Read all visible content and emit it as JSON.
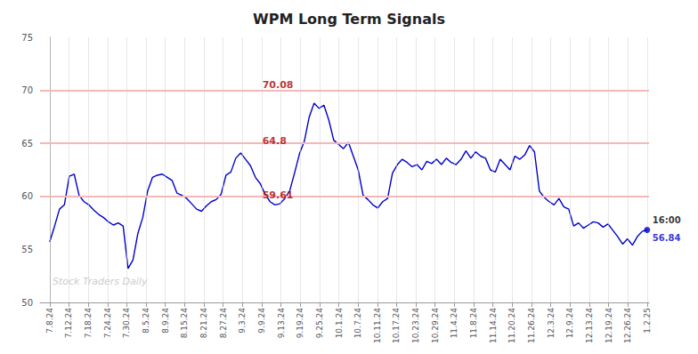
{
  "chart_data": {
    "type": "line",
    "title": "WPM Long Term Signals",
    "x": [
      0,
      0.2541,
      0.5082,
      0.7623,
      1.0164,
      1.2705,
      1.5246,
      1.7787,
      2.0328,
      2.2869,
      2.541,
      2.7951,
      3.0492,
      3.3033,
      3.5574,
      3.8115,
      4.0656,
      4.3197,
      4.5738,
      4.8279,
      5.082,
      5.3361,
      5.5902,
      5.8443,
      6.0984,
      6.3525,
      6.6066,
      6.8607,
      7.1148,
      7.3689,
      7.623,
      7.877,
      8.1311,
      8.3852,
      8.6393,
      8.8934,
      9.1475,
      9.4016,
      9.6557,
      9.9098,
      10.1639,
      10.418,
      10.6721,
      10.9262,
      11.1803,
      11.4344,
      11.6885,
      11.9426,
      12.1967,
      12.4508,
      12.7049,
      12.959,
      13.2131,
      13.4672,
      13.7213,
      13.9754,
      14.2295,
      14.4836,
      14.7377,
      14.9918,
      15.2459,
      15.5,
      15.7541,
      16.0082,
      16.2623,
      16.5164,
      16.7705,
      17.0246,
      17.2787,
      17.5328,
      17.7869,
      18.041,
      18.2951,
      18.5492,
      18.8033,
      19.0574,
      19.3115,
      19.5656,
      19.8197,
      20.0738,
      20.3279,
      20.582,
      20.8361,
      21.0902,
      21.3443,
      21.5984,
      21.8525,
      22.1066,
      22.3607,
      22.6148,
      22.8689,
      23.123,
      23.377,
      23.6311,
      23.8852,
      24.1393,
      24.3934,
      24.6475,
      24.9016,
      25.1557,
      25.4098,
      25.6639,
      25.918,
      26.1721,
      26.4262,
      26.6803,
      26.9344,
      27.1885,
      27.4426,
      27.6967,
      27.9508,
      28.2049,
      28.459,
      28.7131,
      28.9672,
      29.2213,
      29.4754,
      29.7295,
      29.9836,
      30.2377,
      30.4918,
      30.7459,
      31
    ],
    "values": [
      55.7,
      57.2,
      58.8,
      59.2,
      61.9,
      62.1,
      60.1,
      59.5,
      59.2,
      58.7,
      58.3,
      58.0,
      57.6,
      57.3,
      57.5,
      57.2,
      53.2,
      54.0,
      56.5,
      58.0,
      60.5,
      61.8,
      62.0,
      62.1,
      61.8,
      61.5,
      60.3,
      60.1,
      59.8,
      59.3,
      58.8,
      58.6,
      59.1,
      59.5,
      59.7,
      60.2,
      62.0,
      62.3,
      63.6,
      64.1,
      63.5,
      62.9,
      61.8,
      61.2,
      60.2,
      59.5,
      59.2,
      59.3,
      59.8,
      60.5,
      62.2,
      64.0,
      65.2,
      67.5,
      68.8,
      68.3,
      68.6,
      67.2,
      65.3,
      64.9,
      64.5,
      65.1,
      63.8,
      62.5,
      60.1,
      59.7,
      59.2,
      58.9,
      59.5,
      59.8,
      62.2,
      63.0,
      63.5,
      63.2,
      62.8,
      63.0,
      62.5,
      63.3,
      63.1,
      63.5,
      63.0,
      63.6,
      63.2,
      63.0,
      63.5,
      64.3,
      63.6,
      64.2,
      63.8,
      63.6,
      62.5,
      62.3,
      63.5,
      63.0,
      62.5,
      63.8,
      63.5,
      63.9,
      64.8,
      64.2,
      60.5,
      59.9,
      59.5,
      59.2,
      59.8,
      59.0,
      58.8,
      57.2,
      57.5,
      57.0,
      57.3,
      57.6,
      57.5,
      57.1,
      57.4,
      56.8,
      56.2,
      55.5,
      56.0,
      55.4,
      56.2,
      56.7,
      56.84
    ],
    "color": "#0000cc",
    "marker": "last",
    "xlim": [
      -0.5,
      31.1
    ],
    "xticks": [
      {
        "value": 0,
        "label": "7.8.24"
      },
      {
        "value": 1,
        "label": "7.12.24"
      },
      {
        "value": 2,
        "label": "7.18.24"
      },
      {
        "value": 3,
        "label": "7.24.24"
      },
      {
        "value": 4,
        "label": "7.30.24"
      },
      {
        "value": 5,
        "label": "8.5.24"
      },
      {
        "value": 6,
        "label": "8.9.24"
      },
      {
        "value": 7,
        "label": "8.15.24"
      },
      {
        "value": 8,
        "label": "8.21.24"
      },
      {
        "value": 9,
        "label": "8.27.24"
      },
      {
        "value": 10,
        "label": "9.3.24"
      },
      {
        "value": 11,
        "label": "9.9.24"
      },
      {
        "value": 12,
        "label": "9.13.24"
      },
      {
        "value": 13,
        "label": "9.19.24"
      },
      {
        "value": 14,
        "label": "9.25.24"
      },
      {
        "value": 15,
        "label": "10.1.24"
      },
      {
        "value": 16,
        "label": "10.7.24"
      },
      {
        "value": 17,
        "label": "10.11.24"
      },
      {
        "value": 18,
        "label": "10.17.24"
      },
      {
        "value": 19,
        "label": "10.23.24"
      },
      {
        "value": 20,
        "label": "10.29.24"
      },
      {
        "value": 21,
        "label": "11.4.24"
      },
      {
        "value": 22,
        "label": "11.8.24"
      },
      {
        "value": 23,
        "label": "11.14.24"
      },
      {
        "value": 24,
        "label": "11.20.24"
      },
      {
        "value": 25,
        "label": "11.26.24"
      },
      {
        "value": 26,
        "label": "12.3.24"
      },
      {
        "value": 27,
        "label": "12.9.24"
      },
      {
        "value": 28,
        "label": "12.13.24"
      },
      {
        "value": 29,
        "label": "12.19.24"
      },
      {
        "value": 30,
        "label": "12.26.24"
      },
      {
        "value": 31,
        "label": "1.2.25"
      }
    ],
    "ylim": [
      50,
      75
    ],
    "yticks": [
      50,
      55,
      60,
      65,
      70,
      75
    ],
    "grid": "x",
    "hlines": [
      {
        "y": 70.0,
        "color": "#f5b8b8"
      },
      {
        "y": 65.0,
        "color": "#f5b8b8"
      },
      {
        "y": 60.0,
        "color": "#f5b8b8"
      }
    ],
    "annotations": [
      {
        "text": "70.08",
        "y": 70.08,
        "color": "#aa0000"
      },
      {
        "text": "64.8",
        "y": 64.8,
        "color": "#aa0000"
      },
      {
        "text": "59.61",
        "y": 59.61,
        "color": "#aa0000"
      },
      {
        "text": "16:00",
        "x": 31,
        "y": 56.84,
        "position": "above",
        "color": "#000000"
      },
      {
        "text": "56.84",
        "x": 31,
        "y": 56.84,
        "position": "below",
        "color": "#0000cc"
      },
      {
        "text": "Stock Traders Daily",
        "position": "watermark"
      }
    ]
  }
}
